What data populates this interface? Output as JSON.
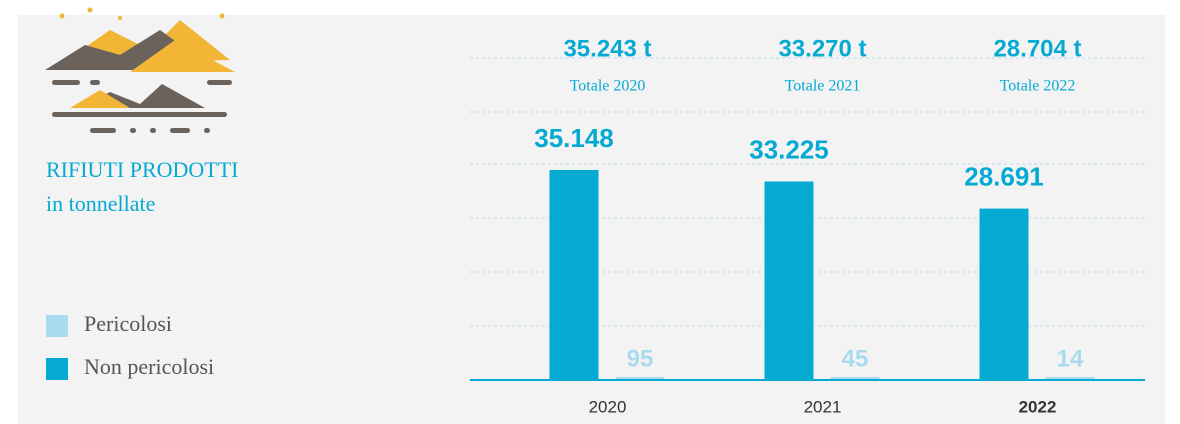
{
  "chart_data": {
    "type": "bar",
    "title": "RIFIUTI PRODOTTI",
    "subtitle": "in tonnellate",
    "categories": [
      "2020",
      "2021",
      "2022"
    ],
    "highlight": "2022",
    "series": [
      {
        "name": "Pericolosi",
        "color": "#a9dbee",
        "values": [
          95,
          45,
          14
        ],
        "value_labels": [
          "95",
          "45",
          "14"
        ]
      },
      {
        "name": "Non pericolosi",
        "color": "#05aad3",
        "values": [
          35148,
          33225,
          28691
        ],
        "value_labels": [
          "35.148",
          "33.225",
          "28.691"
        ]
      }
    ],
    "totals": [
      35243,
      33270,
      28704
    ],
    "totals_labels": [
      "35.243 t",
      "33.270 t",
      "28.704 t"
    ],
    "totals_captions": [
      "Totale 2020",
      "Totale 2021",
      "Totale 2022"
    ],
    "ylim": [
      0,
      40000
    ]
  }
}
